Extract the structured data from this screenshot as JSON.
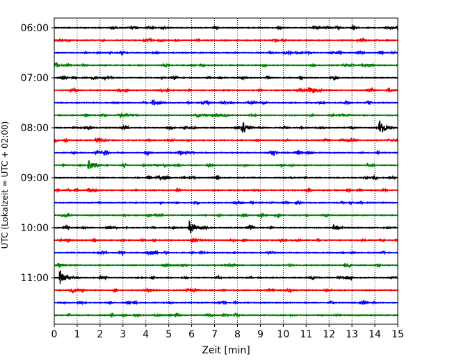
{
  "chart_data": {
    "type": "line",
    "subtype": "helicorder",
    "title": "",
    "xlabel": "Zeit  [min]",
    "ylabel": "UTC (Lokalzeit = UTC + 02:00)",
    "xlim": [
      0,
      15
    ],
    "x_ticks": [
      "0",
      "1",
      "2",
      "3",
      "4",
      "5",
      "6",
      "7",
      "8",
      "9",
      "10",
      "11",
      "12",
      "13",
      "14",
      "15"
    ],
    "grid": "vertical dotted at each minute",
    "y_tick_labels": [
      "06:00",
      "07:00",
      "08:00",
      "09:00",
      "10:00",
      "11:00"
    ],
    "trace_minutes_per_line": 15,
    "trace_colors": [
      "#000000",
      "#ff0000",
      "#0000ff",
      "#008000"
    ],
    "trace_starts": [
      "06:00",
      "06:15",
      "06:30",
      "06:45",
      "07:00",
      "07:15",
      "07:30",
      "07:45",
      "08:00",
      "08:15",
      "08:30",
      "08:45",
      "09:00",
      "09:15",
      "09:30",
      "09:45",
      "10:00",
      "10:15",
      "10:30",
      "10:45",
      "11:00",
      "11:15",
      "11:30",
      "11:45"
    ],
    "notable_events": [
      {
        "start": "06:00",
        "minute": 11.3,
        "amplitude": 0.2
      },
      {
        "start": "07:15",
        "minute": 11.1,
        "amplitude": 0.35
      },
      {
        "start": "07:30",
        "minute": 4.3,
        "amplitude": 0.3
      },
      {
        "start": "08:00",
        "minute": 8.2,
        "amplitude": 0.8
      },
      {
        "start": "08:00",
        "minute": 14.2,
        "amplitude": 0.85
      },
      {
        "start": "08:15",
        "minute": 1.8,
        "amplitude": 0.35
      },
      {
        "start": "08:45",
        "minute": 1.5,
        "amplitude": 0.55
      },
      {
        "start": "10:00",
        "minute": 5.9,
        "amplitude": 0.75
      },
      {
        "start": "10:00",
        "minute": 12.2,
        "amplitude": 0.3
      },
      {
        "start": "10:15",
        "minute": 6.0,
        "amplitude": 0.3
      },
      {
        "start": "11:00",
        "minute": 0.25,
        "amplitude": 0.85
      }
    ]
  },
  "colors": {
    "axes": "#000000",
    "grid": "#000000",
    "background": "#ffffff"
  }
}
